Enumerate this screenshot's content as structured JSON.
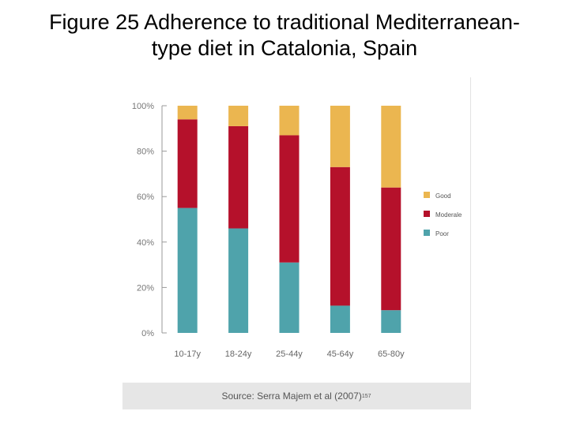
{
  "title": {
    "line1": "Figure 25 Adherence to traditional Mediterranean-",
    "line2": "type diet in Catalonia, Spain"
  },
  "source": {
    "text": "Source: Serra Majem et al (2007)",
    "ref": "157"
  },
  "chart_data": {
    "type": "bar",
    "stacked": true,
    "categories": [
      "10-17y",
      "18-24y",
      "25-44y",
      "45-64y",
      "65-80y"
    ],
    "series": [
      {
        "name": "Poor",
        "color": "#4fa3ab",
        "values": [
          55,
          46,
          31,
          12,
          10
        ]
      },
      {
        "name": "Moderale",
        "color": "#b5112b",
        "values": [
          39,
          45,
          56,
          61,
          54
        ]
      },
      {
        "name": "Good",
        "color": "#ebb650",
        "values": [
          6,
          9,
          13,
          27,
          36
        ]
      }
    ],
    "legend_order": [
      "Good",
      "Moderale",
      "Poor"
    ],
    "legend_position": "right",
    "ylim": [
      0,
      100
    ],
    "yticks": [
      "0%",
      "20%",
      "40%",
      "60%",
      "80%",
      "100%"
    ],
    "ytick_values": [
      0,
      20,
      40,
      60,
      80,
      100
    ],
    "grid": false
  }
}
